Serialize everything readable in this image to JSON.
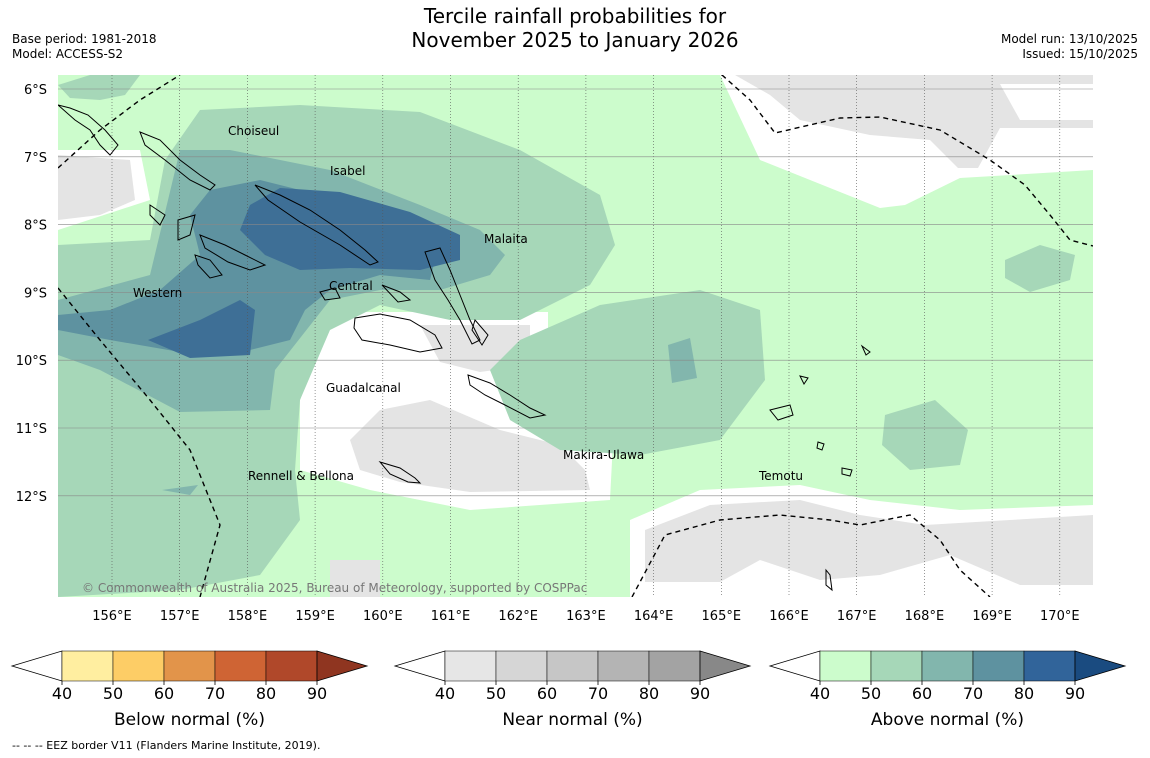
{
  "header": {
    "title_line1": "Tercile rainfall probabilities for",
    "title_line2": "November 2025 to January 2026",
    "base_period": "Base period: 1981-2018",
    "model": "Model: ACCESS-S2",
    "model_run": "Model run: 13/10/2025",
    "issued": "Issued: 15/10/2025"
  },
  "map": {
    "lat_ticks": [
      "6°S",
      "7°S",
      "8°S",
      "9°S",
      "10°S",
      "11°S",
      "12°S"
    ],
    "lon_ticks": [
      "156°E",
      "157°E",
      "158°E",
      "159°E",
      "160°E",
      "161°E",
      "162°E",
      "163°E",
      "164°E",
      "165°E",
      "166°E",
      "167°E",
      "168°E",
      "169°E",
      "170°E"
    ],
    "place_labels": [
      {
        "name": "Choiseul"
      },
      {
        "name": "Isabel"
      },
      {
        "name": "Malaita"
      },
      {
        "name": "Western"
      },
      {
        "name": "Central"
      },
      {
        "name": "Guadalcanal"
      },
      {
        "name": "Makira-Ulawa"
      },
      {
        "name": "Rennell & Bellona"
      },
      {
        "name": "Temotu"
      }
    ],
    "copyright": "© Commonwealth of Australia 2025, Bureau of Meteorology, supported by COSPPac"
  },
  "legends": [
    {
      "label": "Below normal (%)",
      "ticks": [
        "40",
        "50",
        "60",
        "70",
        "80",
        "90"
      ],
      "colors": [
        "#ffeea0",
        "#fdcd66",
        "#e2944a",
        "#cf6434",
        "#b0482a",
        "#8f3520"
      ]
    },
    {
      "label": "Near normal (%)",
      "ticks": [
        "40",
        "50",
        "60",
        "70",
        "80",
        "90"
      ],
      "colors": [
        "#e6e6e6",
        "#d6d6d6",
        "#c6c6c6",
        "#b4b4b4",
        "#a3a3a3",
        "#888888"
      ]
    },
    {
      "label": "Above normal (%)",
      "ticks": [
        "40",
        "50",
        "60",
        "70",
        "80",
        "90"
      ],
      "colors": [
        "#ccfccc",
        "#a6d7b8",
        "#82b6ad",
        "#5e92a0",
        "#31649a",
        "#1a4b80"
      ]
    }
  ],
  "footnote": "--  --  -- EEZ border V11 (Flanders Marine Institute, 2019)."
}
